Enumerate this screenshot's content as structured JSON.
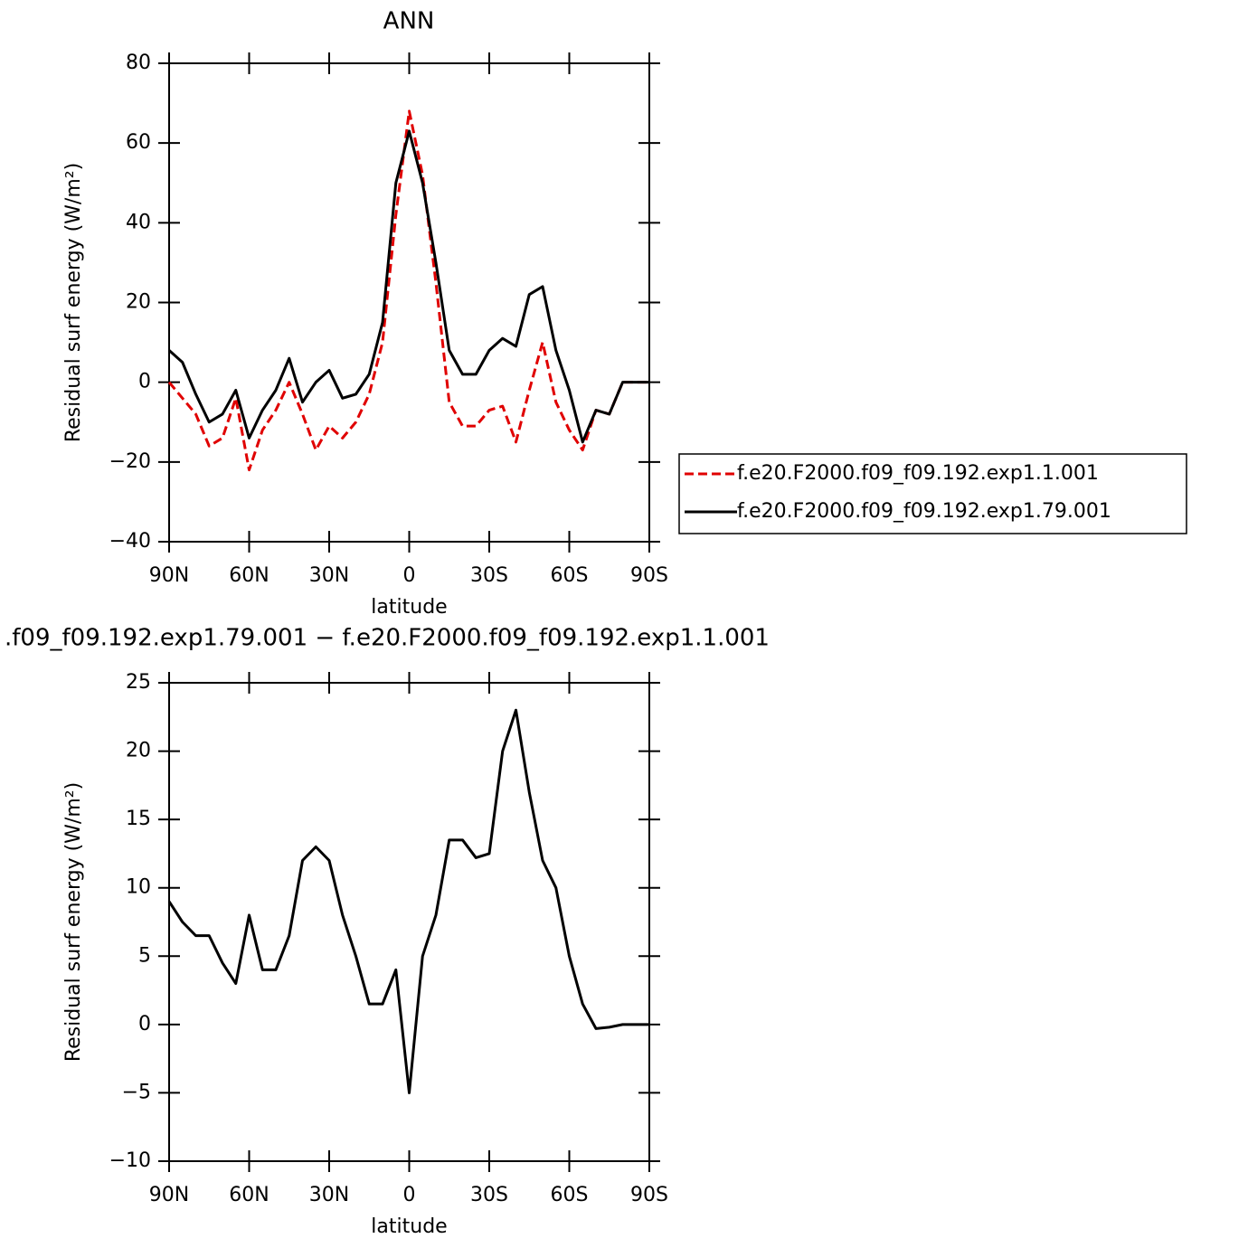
{
  "chart_data": [
    {
      "type": "line",
      "title": "ANN",
      "xlabel": "latitude",
      "ylabel": "Residual surf energy (W/m²)",
      "xlim": [
        90,
        -90
      ],
      "xticks": [
        {
          "value": 90,
          "label": "90N"
        },
        {
          "value": 60,
          "label": "60N"
        },
        {
          "value": 30,
          "label": "30N"
        },
        0,
        {
          "value": -30,
          "label": "30S"
        },
        {
          "value": -60,
          "label": "60S"
        },
        {
          "value": -90,
          "label": "90S"
        }
      ],
      "ylim": [
        -40,
        80
      ],
      "yticks": [
        {
          "value": -40,
          "label": "−40"
        },
        {
          "value": -20,
          "label": "−20"
        },
        0,
        20,
        40,
        60,
        80
      ],
      "legend": "right",
      "x": [
        90,
        85,
        80,
        75,
        70,
        65,
        60,
        55,
        50,
        45,
        40,
        35,
        30,
        25,
        20,
        15,
        10,
        5,
        0,
        -5,
        -10,
        -15,
        -20,
        -25,
        -30,
        -35,
        -40,
        -45,
        -50,
        -55,
        -60,
        -65,
        -70,
        -75,
        -80,
        -85,
        -90
      ],
      "series": [
        {
          "name": "f.e20.F2000.f09_f09.192.exp1.1.001",
          "color": "#e00000",
          "dash": true,
          "values": [
            0,
            -4,
            -8,
            -16,
            -14,
            -4,
            -22,
            -12,
            -7,
            0,
            -8,
            -17,
            -11,
            -14,
            -10,
            -3,
            10,
            42,
            68,
            52,
            25,
            -5,
            -11,
            -11,
            -7,
            -6,
            -15,
            -2,
            10,
            -5,
            -12,
            -17,
            -7,
            -8,
            0,
            0,
            0
          ]
        },
        {
          "name": "f.e20.F2000.f09_f09.192.exp1.79.001",
          "color": "#000000",
          "dash": false,
          "values": [
            8,
            5,
            -3,
            -10,
            -8,
            -2,
            -14,
            -7,
            -2,
            6,
            -5,
            0,
            3,
            -4,
            -3,
            2,
            15,
            50,
            63,
            50,
            30,
            8,
            2,
            2,
            8,
            11,
            9,
            22,
            24,
            8,
            -2,
            -15,
            -7,
            -8,
            0,
            0,
            0
          ]
        }
      ]
    },
    {
      "type": "line",
      "title": ".f09_f09.192.exp1.79.001 − f.e20.F2000.f09_f09.192.exp1.1.001",
      "xlabel": "latitude",
      "ylabel": "Residual surf energy (W/m²)",
      "xlim": [
        90,
        -90
      ],
      "xticks": [
        {
          "value": 90,
          "label": "90N"
        },
        {
          "value": 60,
          "label": "60N"
        },
        {
          "value": 30,
          "label": "30N"
        },
        0,
        {
          "value": -30,
          "label": "30S"
        },
        {
          "value": -60,
          "label": "60S"
        },
        {
          "value": -90,
          "label": "90S"
        }
      ],
      "ylim": [
        -10,
        25
      ],
      "yticks": [
        {
          "value": -10,
          "label": "−10"
        },
        {
          "value": -5,
          "label": "−5"
        },
        0,
        5,
        10,
        15,
        20,
        25
      ],
      "x": [
        90,
        85,
        80,
        75,
        70,
        65,
        60,
        55,
        50,
        45,
        40,
        35,
        30,
        25,
        20,
        15,
        10,
        5,
        0,
        -5,
        -10,
        -15,
        -20,
        -25,
        -30,
        -35,
        -40,
        -45,
        -50,
        -55,
        -60,
        -65,
        -70,
        -75,
        -80,
        -85,
        -90
      ],
      "series": [
        {
          "color": "#000000",
          "dash": false,
          "values": [
            9,
            7.5,
            6.5,
            6.5,
            4.5,
            3,
            8,
            4,
            4,
            6.5,
            12,
            13,
            12,
            8,
            5,
            1.5,
            1.5,
            4,
            -5,
            5,
            8,
            13.5,
            13.5,
            12.2,
            12.5,
            20,
            23,
            17,
            12,
            10,
            5,
            1.5,
            -0.3,
            -0.2,
            0,
            0,
            0
          ]
        }
      ]
    }
  ]
}
